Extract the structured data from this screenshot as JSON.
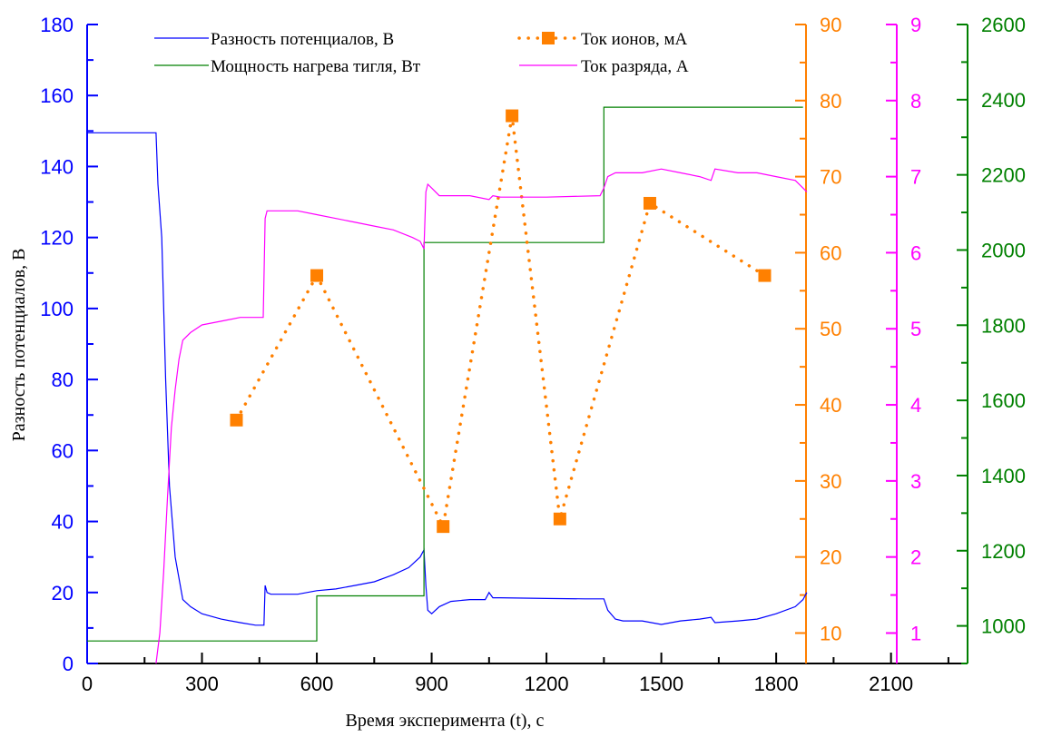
{
  "chart_data": {
    "type": "line",
    "xlabel": "Время эксперимента (t), с",
    "ylabel": "Разность потенциалов, В",
    "xlim": [
      0,
      2300
    ],
    "x_ticks": [
      "0",
      "300",
      "600",
      "900",
      "1200",
      "1500",
      "1800",
      "2100"
    ],
    "axes": {
      "left": {
        "ylim": [
          0,
          180
        ],
        "ticks": [
          "0",
          "20",
          "40",
          "60",
          "80",
          "100",
          "120",
          "140",
          "160",
          "180"
        ],
        "color": "#0000ff"
      },
      "right1": {
        "ylim": [
          6,
          90
        ],
        "ticks": [
          "10",
          "20",
          "30",
          "40",
          "50",
          "60",
          "70",
          "80",
          "90"
        ],
        "color": "#ff8000"
      },
      "right2": {
        "ylim": [
          0.6,
          9
        ],
        "ticks": [
          "1",
          "2",
          "3",
          "4",
          "5",
          "6",
          "7",
          "8",
          "9"
        ],
        "color": "#ff00ff"
      },
      "right3": {
        "ylim": [
          900,
          2600
        ],
        "ticks": [
          "1000",
          "1200",
          "1400",
          "1600",
          "1800",
          "2000",
          "2200",
          "2400",
          "2600"
        ],
        "color": "#008000"
      }
    },
    "legend_position": "top",
    "series": [
      {
        "name": "Разность потенциалов, В",
        "axis": "left",
        "color": "#0000ff",
        "style": "line",
        "x": [
          0,
          180,
          185,
          195,
          205,
          215,
          230,
          250,
          270,
          300,
          350,
          400,
          440,
          462,
          465,
          470,
          480,
          500,
          550,
          600,
          650,
          700,
          750,
          800,
          840,
          870,
          880,
          885,
          890,
          900,
          920,
          950,
          1000,
          1040,
          1050,
          1060,
          1080,
          1200,
          1300,
          1350,
          1360,
          1380,
          1400,
          1450,
          1500,
          1550,
          1600,
          1630,
          1640,
          1700,
          1750,
          1800,
          1850,
          1870,
          1880
        ],
        "values": [
          149.5,
          149.5,
          135,
          120,
          80,
          50,
          30,
          18,
          16,
          14,
          12.5,
          11.5,
          10.8,
          10.8,
          22,
          20,
          19.5,
          19.5,
          19.5,
          20.5,
          21,
          22,
          23,
          25,
          27,
          30,
          32,
          22,
          15,
          14,
          16,
          17.5,
          18,
          18,
          20,
          18.5,
          18.5,
          18.3,
          18.2,
          18.2,
          15,
          12.5,
          12,
          12,
          11,
          12,
          12.5,
          13,
          11.5,
          12,
          12.5,
          14,
          16,
          18,
          20
        ]
      },
      {
        "name": "Мощность нагрева тигля, Вт",
        "axis": "right3",
        "color": "#008000",
        "style": "step",
        "x": [
          0,
          600,
          600,
          880,
          880,
          1350,
          1350,
          1870
        ],
        "values": [
          960,
          960,
          1080,
          1080,
          2020,
          2020,
          2380,
          2380
        ]
      },
      {
        "name": "Ток ионов, мА",
        "axis": "right1",
        "color": "#ff8000",
        "style": "dotted-markers",
        "x": [
          390,
          600,
          930,
          1110,
          1235,
          1470,
          1770
        ],
        "values": [
          38,
          57,
          24,
          78,
          25,
          66.5,
          57
        ]
      },
      {
        "name": "Ток разряда, А",
        "axis": "right2",
        "color": "#ff00ff",
        "style": "line",
        "x": [
          180,
          190,
          200,
          210,
          220,
          230,
          240,
          250,
          270,
          300,
          350,
          400,
          460,
          465,
          470,
          500,
          550,
          600,
          650,
          700,
          750,
          800,
          850,
          870,
          880,
          885,
          890,
          900,
          920,
          950,
          1000,
          1050,
          1060,
          1080,
          1200,
          1340,
          1350,
          1360,
          1380,
          1400,
          1450,
          1500,
          1550,
          1600,
          1630,
          1640,
          1700,
          1750,
          1800,
          1850,
          1870,
          1880
        ],
        "values": [
          0.6,
          1.0,
          1.8,
          2.8,
          3.7,
          4.2,
          4.6,
          4.85,
          4.95,
          5.05,
          5.1,
          5.15,
          5.15,
          6.45,
          6.55,
          6.55,
          6.55,
          6.5,
          6.45,
          6.4,
          6.35,
          6.3,
          6.2,
          6.15,
          6.05,
          6.8,
          6.9,
          6.85,
          6.75,
          6.75,
          6.75,
          6.7,
          6.75,
          6.73,
          6.73,
          6.75,
          6.85,
          7.0,
          7.05,
          7.05,
          7.05,
          7.1,
          7.05,
          7.0,
          6.95,
          7.1,
          7.05,
          7.05,
          7.0,
          6.95,
          6.85,
          6.8
        ]
      }
    ]
  }
}
